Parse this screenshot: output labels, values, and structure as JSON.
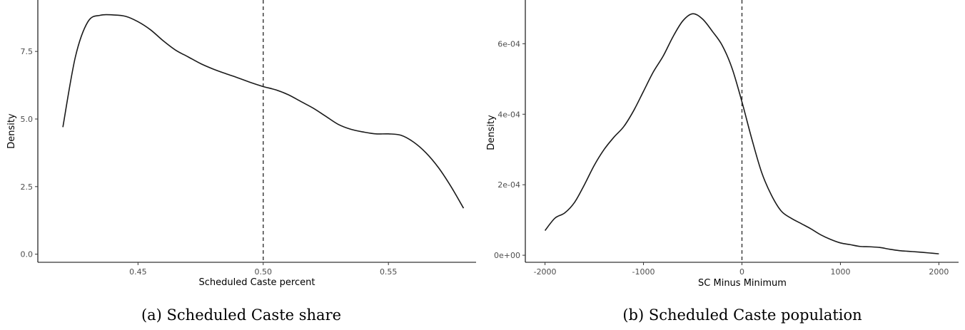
{
  "chart_data": [
    {
      "type": "line",
      "caption": "(a) Scheduled Caste share",
      "xlabel": "Scheduled Caste percent",
      "ylabel": "Density",
      "xlim": [
        0.41,
        0.585
      ],
      "ylim": [
        -0.3,
        9.35
      ],
      "xticks": [
        0.45,
        0.5,
        0.55
      ],
      "xtick_labels": [
        "0.45",
        "0.50",
        "0.55"
      ],
      "yticks": [
        0.0,
        2.5,
        5.0,
        7.5
      ],
      "ytick_labels": [
        "0.0",
        "2.5",
        "5.0",
        "7.5"
      ],
      "vline": 0.5,
      "grid": false,
      "series": [
        {
          "x": [
            0.42,
            0.425,
            0.43,
            0.435,
            0.44,
            0.445,
            0.45,
            0.455,
            0.46,
            0.465,
            0.47,
            0.475,
            0.48,
            0.485,
            0.49,
            0.495,
            0.5,
            0.505,
            0.51,
            0.515,
            0.52,
            0.525,
            0.53,
            0.535,
            0.54,
            0.545,
            0.55,
            0.555,
            0.56,
            0.565,
            0.57,
            0.575,
            0.58
          ],
          "y": [
            4.7,
            7.3,
            8.6,
            8.84,
            8.85,
            8.8,
            8.6,
            8.3,
            7.9,
            7.55,
            7.3,
            7.05,
            6.85,
            6.68,
            6.52,
            6.35,
            6.2,
            6.08,
            5.9,
            5.65,
            5.4,
            5.1,
            4.8,
            4.62,
            4.52,
            4.45,
            4.45,
            4.4,
            4.15,
            3.75,
            3.2,
            2.5,
            1.7
          ]
        }
      ]
    },
    {
      "type": "line",
      "caption": "(b) Scheduled Caste population",
      "xlabel": "SC Minus Minimum",
      "ylabel": "Density",
      "xlim": [
        -2200,
        2200
      ],
      "ylim": [
        -2e-05,
        0.00072
      ],
      "xticks": [
        -2000,
        -1000,
        0,
        1000,
        2000
      ],
      "xtick_labels": [
        "-2000",
        "-1000",
        "0",
        "1000",
        "2000"
      ],
      "yticks": [
        0,
        0.0002,
        0.0004,
        0.0006
      ],
      "ytick_labels": [
        "0e+00",
        "2e-04",
        "4e-04",
        "6e-04"
      ],
      "vline": 0,
      "grid": false,
      "series": [
        {
          "x": [
            -2000,
            -1900,
            -1800,
            -1700,
            -1600,
            -1500,
            -1400,
            -1300,
            -1200,
            -1100,
            -1000,
            -900,
            -800,
            -700,
            -600,
            -500,
            -400,
            -300,
            -200,
            -100,
            0,
            100,
            200,
            300,
            400,
            500,
            600,
            700,
            800,
            900,
            1000,
            1100,
            1200,
            1300,
            1400,
            1500,
            1600,
            1700,
            1800,
            1900,
            2000
          ],
          "y": [
            7e-05,
            0.000105,
            0.00012,
            0.00015,
            0.0002,
            0.000255,
            0.0003,
            0.000335,
            0.000365,
            0.00041,
            0.000465,
            0.00052,
            0.000565,
            0.00062,
            0.000665,
            0.000685,
            0.00067,
            0.000635,
            0.000595,
            0.00053,
            0.000435,
            0.00033,
            0.000235,
            0.00017,
            0.000125,
            0.000105,
            9e-05,
            7.5e-05,
            5.8e-05,
            4.5e-05,
            3.5e-05,
            3e-05,
            2.5e-05,
            2.4e-05,
            2.2e-05,
            1.7e-05,
            1.3e-05,
            1.1e-05,
            9e-06,
            6.5e-06,
            4e-06
          ]
        }
      ]
    }
  ]
}
